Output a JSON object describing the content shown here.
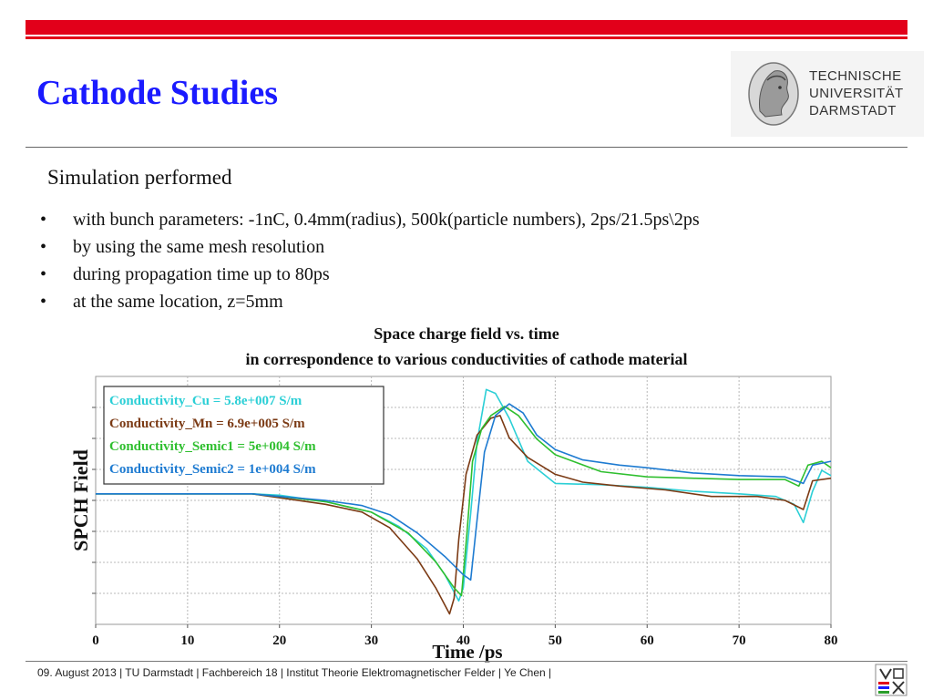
{
  "slide": {
    "title": "Cathode Studies",
    "subtitle": "Simulation performed",
    "bullets": [
      "with bunch parameters: -1nC, 0.4mm(radius), 500k(particle numbers), 2ps/21.5ps\\2ps",
      "by using the same mesh resolution",
      "during propagation time up to 80ps",
      "at the same location, z=5mm"
    ],
    "bullet_symbol": "•"
  },
  "logo": {
    "lines": [
      "TECHNISCHE",
      "UNIVERSITÄT",
      "DARMSTADT"
    ]
  },
  "footer": {
    "text": "09. August 2013  |  TU Darmstadt  |  Fachbereich 18  |  Institut Theorie Elektromagnetischer Felder  |  Ye Chen |"
  },
  "colors": {
    "accent_red": "#e2001a",
    "title_blue": "#1a1aff"
  },
  "chart_data": {
    "type": "line",
    "title_line1": "Space charge field vs. time",
    "title_line2": "in correspondence to various conductivities of cathode material",
    "xlabel": "Time /ps",
    "ylabel": "SPCH Field",
    "xlim": [
      0,
      80
    ],
    "xticks": [
      0,
      10,
      20,
      30,
      40,
      50,
      60,
      70,
      80
    ],
    "ylim": [
      -1.0,
      0.9
    ],
    "grid": true,
    "legend_position": "top-left",
    "series": [
      {
        "name": "Conductivity_Cu = 5.8e+007 S/m",
        "color": "#2ccfd6",
        "points": [
          [
            0,
            0
          ],
          [
            17,
            0
          ],
          [
            20,
            -0.01
          ],
          [
            25,
            -0.06
          ],
          [
            30,
            -0.14
          ],
          [
            33,
            -0.25
          ],
          [
            36,
            -0.42
          ],
          [
            38,
            -0.62
          ],
          [
            39.5,
            -0.82
          ],
          [
            40,
            -0.72
          ],
          [
            40.8,
            -0.15
          ],
          [
            41.5,
            0.4
          ],
          [
            42.5,
            0.8
          ],
          [
            43.5,
            0.77
          ],
          [
            45,
            0.58
          ],
          [
            47,
            0.25
          ],
          [
            50,
            0.08
          ],
          [
            55,
            0.07
          ],
          [
            60,
            0.05
          ],
          [
            65,
            0.02
          ],
          [
            70,
            0.0
          ],
          [
            74,
            -0.02
          ],
          [
            76,
            -0.08
          ],
          [
            77,
            -0.22
          ],
          [
            78,
            0.02
          ],
          [
            79,
            0.18
          ],
          [
            80,
            0.14
          ]
        ]
      },
      {
        "name": "Conductivity_Mn = 6.9e+005 S/m",
        "color": "#7b3a14",
        "points": [
          [
            0,
            0
          ],
          [
            17,
            0
          ],
          [
            20,
            -0.03
          ],
          [
            25,
            -0.08
          ],
          [
            29,
            -0.14
          ],
          [
            32,
            -0.26
          ],
          [
            35,
            -0.5
          ],
          [
            37,
            -0.72
          ],
          [
            38.5,
            -0.92
          ],
          [
            39,
            -0.8
          ],
          [
            39.5,
            -0.35
          ],
          [
            40.3,
            0.15
          ],
          [
            41.5,
            0.45
          ],
          [
            43,
            0.58
          ],
          [
            44,
            0.6
          ],
          [
            45,
            0.43
          ],
          [
            47,
            0.28
          ],
          [
            50,
            0.15
          ],
          [
            53,
            0.09
          ],
          [
            57,
            0.06
          ],
          [
            62,
            0.03
          ],
          [
            67,
            -0.02
          ],
          [
            72,
            -0.02
          ],
          [
            75,
            -0.05
          ],
          [
            77,
            -0.12
          ],
          [
            78,
            0.1
          ],
          [
            80,
            0.12
          ]
        ]
      },
      {
        "name": "Conductivity_Semic1 = 5e+004 S/m",
        "color": "#2fbf2f",
        "points": [
          [
            0,
            0
          ],
          [
            17,
            0
          ],
          [
            20,
            -0.02
          ],
          [
            25,
            -0.06
          ],
          [
            30,
            -0.14
          ],
          [
            34,
            -0.3
          ],
          [
            37,
            -0.52
          ],
          [
            39,
            -0.72
          ],
          [
            39.8,
            -0.78
          ],
          [
            40.4,
            -0.3
          ],
          [
            41,
            0.25
          ],
          [
            42,
            0.5
          ],
          [
            43,
            0.6
          ],
          [
            44.5,
            0.67
          ],
          [
            46,
            0.6
          ],
          [
            48,
            0.42
          ],
          [
            50,
            0.3
          ],
          [
            55,
            0.17
          ],
          [
            60,
            0.13
          ],
          [
            65,
            0.12
          ],
          [
            70,
            0.11
          ],
          [
            75,
            0.11
          ],
          [
            76.5,
            0.06
          ],
          [
            77.5,
            0.22
          ],
          [
            79,
            0.25
          ],
          [
            80,
            0.2
          ]
        ]
      },
      {
        "name": "Conductivity_Semic2 = 1e+004 S/m",
        "color": "#1e7bd1",
        "points": [
          [
            0,
            0
          ],
          [
            17,
            0
          ],
          [
            20,
            -0.02
          ],
          [
            25,
            -0.05
          ],
          [
            29,
            -0.09
          ],
          [
            32,
            -0.16
          ],
          [
            35,
            -0.3
          ],
          [
            38,
            -0.48
          ],
          [
            40,
            -0.62
          ],
          [
            40.8,
            -0.66
          ],
          [
            41.5,
            -0.2
          ],
          [
            42.3,
            0.32
          ],
          [
            43.5,
            0.6
          ],
          [
            45,
            0.69
          ],
          [
            46.5,
            0.62
          ],
          [
            48,
            0.45
          ],
          [
            50,
            0.34
          ],
          [
            53,
            0.26
          ],
          [
            57,
            0.22
          ],
          [
            60,
            0.2
          ],
          [
            65,
            0.16
          ],
          [
            70,
            0.14
          ],
          [
            75,
            0.13
          ],
          [
            77,
            0.08
          ],
          [
            78,
            0.22
          ],
          [
            80,
            0.25
          ]
        ]
      }
    ]
  }
}
